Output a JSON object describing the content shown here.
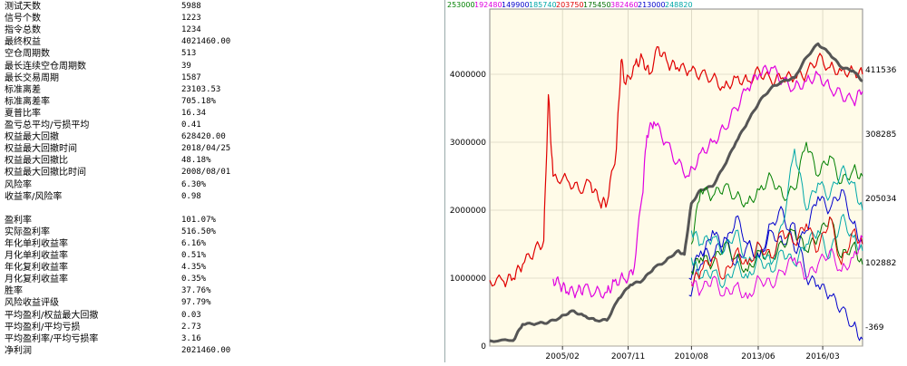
{
  "stats": [
    {
      "label": "测试天数",
      "value": "5988"
    },
    {
      "label": "信号个数",
      "value": "1223"
    },
    {
      "label": "指令总数",
      "value": "1234"
    },
    {
      "label": "最终权益",
      "value": "4021460.00"
    },
    {
      "label": "空仓周期数",
      "value": "513"
    },
    {
      "label": "最长连续空仓周期数",
      "value": "39"
    },
    {
      "label": "最长交易周期",
      "value": "1587"
    },
    {
      "label": "标准离差",
      "value": "23103.53"
    },
    {
      "label": "标准离差率",
      "value": "705.18%"
    },
    {
      "label": "夏普比率",
      "value": "16.34"
    },
    {
      "label": "盈亏总平均/亏损平均",
      "value": "0.41"
    },
    {
      "label": "权益最大回撤",
      "value": "628420.00"
    },
    {
      "label": "权益最大回撤时间",
      "value": "2018/04/25"
    },
    {
      "label": "权益最大回撤比",
      "value": "48.18%"
    },
    {
      "label": "权益最大回撤比时间",
      "value": "2008/08/01"
    },
    {
      "label": "风险率",
      "value": "6.30%"
    },
    {
      "label": "收益率/风险率",
      "value": "0.98"
    },
    {
      "label": "盈利率",
      "value": "101.07%"
    },
    {
      "label": "实际盈利率",
      "value": "516.50%"
    },
    {
      "label": "年化单利收益率",
      "value": "6.16%"
    },
    {
      "label": "月化单利收益率",
      "value": "0.51%"
    },
    {
      "label": "年化复利收益率",
      "value": "4.35%"
    },
    {
      "label": "月化复利收益率",
      "value": "0.35%"
    },
    {
      "label": "胜率",
      "value": "37.76%"
    },
    {
      "label": "风险收益评级",
      "value": "97.79%"
    },
    {
      "label": "平均盈利/权益最大回撤",
      "value": "0.03"
    },
    {
      "label": "平均盈利/平均亏损",
      "value": "2.73"
    },
    {
      "label": "平均盈利率/平均亏损率",
      "value": "3.16"
    },
    {
      "label": "净利润",
      "value": "2021460.00"
    }
  ],
  "chart_data": {
    "type": "line",
    "title": "",
    "background": "#fffbe8",
    "grid": true,
    "x_ticks": [
      "2005/02",
      "2007/11",
      "2010/08",
      "2013/06",
      "2016/03"
    ],
    "left_axis": {
      "ticks": [
        "0",
        "1000000",
        "2000000",
        "3000000",
        "4000000"
      ],
      "ylim": [
        0,
        4800000
      ]
    },
    "right_axis": {
      "ticks": [
        "411536",
        "308285",
        "205034",
        "102882",
        "-369"
      ]
    },
    "top_legend": [
      {
        "label": "253000",
        "color": "#008000"
      },
      {
        "label": "192480",
        "color": "#e000e0"
      },
      {
        "label": "149900",
        "color": "#0000cc"
      },
      {
        "label": "185740",
        "color": "#00a8a8"
      },
      {
        "label": "203750",
        "color": "#e00000"
      },
      {
        "label": "175450",
        "color": "#007000"
      },
      {
        "label": "382460",
        "color": "#e000e0"
      },
      {
        "label": "213000",
        "color": "#0000cc"
      },
      {
        "label": "248820",
        "color": "#00a8a8"
      }
    ],
    "x_range": [
      2002.0,
      2017.9
    ],
    "series": [
      {
        "color": "#e00000",
        "width": 1.2,
        "points": [
          [
            2002.0,
            970000
          ],
          [
            2002.6,
            950000
          ],
          [
            2003.0,
            1000000
          ],
          [
            2003.4,
            1200000
          ],
          [
            2003.9,
            1400000
          ],
          [
            2004.3,
            1550000
          ],
          [
            2004.5,
            3700000
          ],
          [
            2004.7,
            2500000
          ],
          [
            2005.3,
            2450000
          ],
          [
            2005.8,
            2300000
          ],
          [
            2006.3,
            2400000
          ],
          [
            2006.7,
            2100000
          ],
          [
            2007.0,
            2100000
          ],
          [
            2007.4,
            2900000
          ],
          [
            2007.6,
            4200000
          ],
          [
            2007.8,
            3850000
          ],
          [
            2008.2,
            4150000
          ],
          [
            2008.5,
            4250000
          ],
          [
            2008.8,
            4000000
          ],
          [
            2009.2,
            4400000
          ],
          [
            2009.6,
            4150000
          ],
          [
            2010.0,
            4100000
          ],
          [
            2010.5,
            4050000
          ],
          [
            2011.0,
            4000000
          ],
          [
            2011.5,
            3950000
          ],
          [
            2012.0,
            3800000
          ],
          [
            2012.5,
            3950000
          ],
          [
            2013.0,
            3900000
          ],
          [
            2013.5,
            4050000
          ],
          [
            2014.0,
            3900000
          ],
          [
            2014.5,
            3950000
          ],
          [
            2015.0,
            3950000
          ],
          [
            2015.5,
            4000000
          ],
          [
            2016.0,
            4250000
          ],
          [
            2016.5,
            4100000
          ],
          [
            2017.0,
            4050000
          ],
          [
            2017.5,
            4050000
          ],
          [
            2017.9,
            4000000
          ]
        ]
      },
      {
        "color": "#e000e0",
        "width": 1.2,
        "points": [
          [
            2004.7,
            990000
          ],
          [
            2005.0,
            900000
          ],
          [
            2005.3,
            800000
          ],
          [
            2005.7,
            790000
          ],
          [
            2006.0,
            850000
          ],
          [
            2006.5,
            790000
          ],
          [
            2007.0,
            790000
          ],
          [
            2007.3,
            950000
          ],
          [
            2007.7,
            1000000
          ],
          [
            2008.1,
            1050000
          ],
          [
            2008.5,
            2200000
          ],
          [
            2008.7,
            3100000
          ],
          [
            2009.0,
            3300000
          ],
          [
            2009.5,
            3000000
          ],
          [
            2010.0,
            2700000
          ],
          [
            2010.5,
            2500000
          ],
          [
            2011.0,
            2850000
          ],
          [
            2011.5,
            3000000
          ],
          [
            2012.0,
            3200000
          ],
          [
            2012.5,
            3500000
          ],
          [
            2013.0,
            3800000
          ],
          [
            2013.5,
            4000000
          ],
          [
            2014.0,
            4100000
          ],
          [
            2014.5,
            3900000
          ],
          [
            2015.0,
            3800000
          ],
          [
            2015.5,
            3900000
          ],
          [
            2016.0,
            4000000
          ],
          [
            2016.5,
            3800000
          ],
          [
            2017.0,
            3700000
          ],
          [
            2017.5,
            3600000
          ],
          [
            2017.9,
            3750000
          ]
        ]
      },
      {
        "color": "#555555",
        "width": 3,
        "points": [
          [
            2002.0,
            80000
          ],
          [
            2003.0,
            80000
          ],
          [
            2003.4,
            320000
          ],
          [
            2004.0,
            330000
          ],
          [
            2004.5,
            350000
          ],
          [
            2005.0,
            420000
          ],
          [
            2005.5,
            520000
          ],
          [
            2006.0,
            450000
          ],
          [
            2006.5,
            380000
          ],
          [
            2007.0,
            380000
          ],
          [
            2007.5,
            700000
          ],
          [
            2008.0,
            900000
          ],
          [
            2008.5,
            960000
          ],
          [
            2009.0,
            1150000
          ],
          [
            2009.5,
            1250000
          ],
          [
            2010.0,
            1400000
          ],
          [
            2010.3,
            1350000
          ],
          [
            2010.6,
            2100000
          ],
          [
            2011.0,
            2300000
          ],
          [
            2011.5,
            2350000
          ],
          [
            2012.0,
            2650000
          ],
          [
            2012.5,
            3000000
          ],
          [
            2013.0,
            3300000
          ],
          [
            2013.5,
            3600000
          ],
          [
            2014.0,
            3800000
          ],
          [
            2014.5,
            3900000
          ],
          [
            2015.0,
            3950000
          ],
          [
            2015.5,
            4250000
          ],
          [
            2016.0,
            4450000
          ],
          [
            2016.5,
            4300000
          ],
          [
            2017.0,
            4100000
          ],
          [
            2017.5,
            4050000
          ],
          [
            2017.9,
            3900000
          ]
        ]
      },
      {
        "color": "#0000cc",
        "width": 1,
        "points": [
          [
            2010.5,
            750000
          ],
          [
            2011.0,
            1200000
          ],
          [
            2011.5,
            1700000
          ],
          [
            2012.0,
            1400000
          ],
          [
            2012.5,
            1900000
          ],
          [
            2013.0,
            1500000
          ],
          [
            2013.5,
            1300000
          ],
          [
            2014.0,
            1700000
          ],
          [
            2014.5,
            1500000
          ],
          [
            2015.0,
            1800000
          ],
          [
            2015.5,
            1000000
          ],
          [
            2016.0,
            900000
          ],
          [
            2016.5,
            750000
          ],
          [
            2017.0,
            550000
          ],
          [
            2017.5,
            300000
          ],
          [
            2017.9,
            100000
          ]
        ]
      },
      {
        "color": "#0000cc",
        "width": 1,
        "points": [
          [
            2010.5,
            1000000
          ],
          [
            2011.0,
            1400000
          ],
          [
            2011.5,
            1300000
          ],
          [
            2012.0,
            1600000
          ],
          [
            2012.5,
            1200000
          ],
          [
            2013.0,
            1500000
          ],
          [
            2013.5,
            1300000
          ],
          [
            2014.0,
            1800000
          ],
          [
            2014.5,
            2000000
          ],
          [
            2015.0,
            1400000
          ],
          [
            2015.5,
            1700000
          ],
          [
            2016.0,
            2200000
          ],
          [
            2016.5,
            2000000
          ],
          [
            2017.0,
            2300000
          ],
          [
            2017.5,
            1800000
          ],
          [
            2017.9,
            1500000
          ]
        ]
      },
      {
        "color": "#008000",
        "width": 1,
        "points": [
          [
            2010.6,
            1500000
          ],
          [
            2011.0,
            2300000
          ],
          [
            2011.5,
            2200000
          ],
          [
            2012.0,
            2350000
          ],
          [
            2012.5,
            2200000
          ],
          [
            2013.0,
            2100000
          ],
          [
            2013.5,
            2300000
          ],
          [
            2014.0,
            2500000
          ],
          [
            2014.5,
            2200000
          ],
          [
            2015.0,
            2300000
          ],
          [
            2015.5,
            3000000
          ],
          [
            2016.0,
            2500000
          ],
          [
            2016.5,
            2800000
          ],
          [
            2017.0,
            2400000
          ],
          [
            2017.5,
            2600000
          ],
          [
            2017.9,
            2500000
          ]
        ]
      },
      {
        "color": "#007000",
        "width": 1,
        "points": [
          [
            2010.6,
            1100000
          ],
          [
            2011.0,
            1300000
          ],
          [
            2011.5,
            1200000
          ],
          [
            2012.0,
            1500000
          ],
          [
            2012.5,
            1300000
          ],
          [
            2013.0,
            1100000
          ],
          [
            2013.5,
            1400000
          ],
          [
            2014.0,
            1300000
          ],
          [
            2014.5,
            1500000
          ],
          [
            2015.0,
            1700000
          ],
          [
            2015.5,
            1400000
          ],
          [
            2016.0,
            1600000
          ],
          [
            2016.5,
            1900000
          ],
          [
            2017.0,
            1300000
          ],
          [
            2017.5,
            1500000
          ],
          [
            2017.9,
            1200000
          ]
        ]
      },
      {
        "color": "#00a8a8",
        "width": 1,
        "points": [
          [
            2010.6,
            1700000
          ],
          [
            2011.0,
            1500000
          ],
          [
            2011.5,
            1600000
          ],
          [
            2012.0,
            1400000
          ],
          [
            2012.5,
            1700000
          ],
          [
            2013.0,
            1200000
          ],
          [
            2013.5,
            1500000
          ],
          [
            2014.0,
            1200000
          ],
          [
            2014.5,
            1800000
          ],
          [
            2015.0,
            2900000
          ],
          [
            2015.5,
            2000000
          ],
          [
            2016.0,
            2400000
          ],
          [
            2016.5,
            2200000
          ],
          [
            2017.0,
            2600000
          ],
          [
            2017.5,
            2400000
          ],
          [
            2017.9,
            2000000
          ]
        ]
      },
      {
        "color": "#00a8a8",
        "width": 1,
        "points": [
          [
            2010.6,
            1300000
          ],
          [
            2011.0,
            1000000
          ],
          [
            2011.5,
            1100000
          ],
          [
            2012.0,
            900000
          ],
          [
            2012.5,
            1200000
          ],
          [
            2013.0,
            1000000
          ],
          [
            2013.5,
            1300000
          ],
          [
            2014.0,
            1100000
          ],
          [
            2014.5,
            1400000
          ],
          [
            2015.0,
            1200000
          ],
          [
            2015.5,
            1500000
          ],
          [
            2016.0,
            1700000
          ],
          [
            2016.5,
            1300000
          ],
          [
            2017.0,
            1900000
          ],
          [
            2017.5,
            1600000
          ],
          [
            2017.9,
            1400000
          ]
        ]
      },
      {
        "color": "#e00000",
        "width": 1,
        "points": [
          [
            2010.6,
            900000
          ],
          [
            2011.0,
            1100000
          ],
          [
            2011.5,
            1300000
          ],
          [
            2012.0,
            1000000
          ],
          [
            2012.5,
            1400000
          ],
          [
            2013.0,
            1200000
          ],
          [
            2013.5,
            1500000
          ],
          [
            2014.0,
            1300000
          ],
          [
            2014.5,
            1700000
          ],
          [
            2015.0,
            1500000
          ],
          [
            2015.5,
            1800000
          ],
          [
            2016.0,
            1400000
          ],
          [
            2016.5,
            1900000
          ],
          [
            2017.0,
            1200000
          ],
          [
            2017.5,
            1700000
          ],
          [
            2017.9,
            1500000
          ]
        ]
      },
      {
        "color": "#e000e0",
        "width": 1,
        "points": [
          [
            2010.6,
            950000
          ],
          [
            2011.0,
            800000
          ],
          [
            2011.5,
            1000000
          ],
          [
            2012.0,
            750000
          ],
          [
            2012.5,
            900000
          ],
          [
            2013.0,
            700000
          ],
          [
            2013.5,
            1000000
          ],
          [
            2014.0,
            900000
          ],
          [
            2014.5,
            1100000
          ],
          [
            2015.0,
            1300000
          ],
          [
            2015.5,
            1000000
          ],
          [
            2016.0,
            1200000
          ],
          [
            2016.5,
            1400000
          ],
          [
            2017.0,
            1100000
          ],
          [
            2017.5,
            1300000
          ],
          [
            2017.9,
            1600000
          ]
        ]
      }
    ]
  }
}
